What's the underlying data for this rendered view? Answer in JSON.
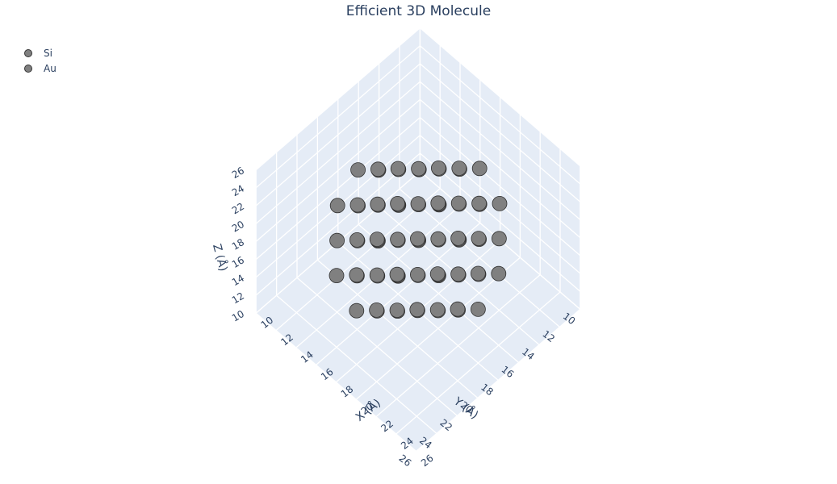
{
  "chart_data": {
    "type": "scatter3d",
    "title": "Efficient 3D Molecule",
    "legend": {
      "placement": "top-left",
      "entries": [
        {
          "name": "Si",
          "color": "#808080"
        },
        {
          "name": "Au",
          "color": "#808080"
        }
      ]
    },
    "axes": {
      "x": {
        "label": "X (Å)",
        "range": [
          10,
          26
        ],
        "ticks": [
          10,
          12,
          14,
          16,
          18,
          20,
          22,
          24,
          26
        ]
      },
      "y": {
        "label": "Y (Å)",
        "range": [
          10,
          26
        ],
        "ticks": [
          10,
          12,
          14,
          16,
          18,
          20,
          22,
          24,
          26
        ]
      },
      "z": {
        "label": "Z (Å)",
        "range": [
          10,
          26
        ],
        "ticks": [
          10,
          12,
          14,
          16,
          18,
          20,
          22,
          24,
          26
        ]
      }
    },
    "grid": true,
    "background_color": "#e5ecf6",
    "marker": {
      "color": "#808080",
      "edge_color": "#333333"
    },
    "atom_lattice": {
      "center": [
        18,
        18,
        18
      ],
      "spacing": 2,
      "radius": 6.6,
      "count_approx": 90
    },
    "note_series": "all visible atoms share the same grey color"
  }
}
